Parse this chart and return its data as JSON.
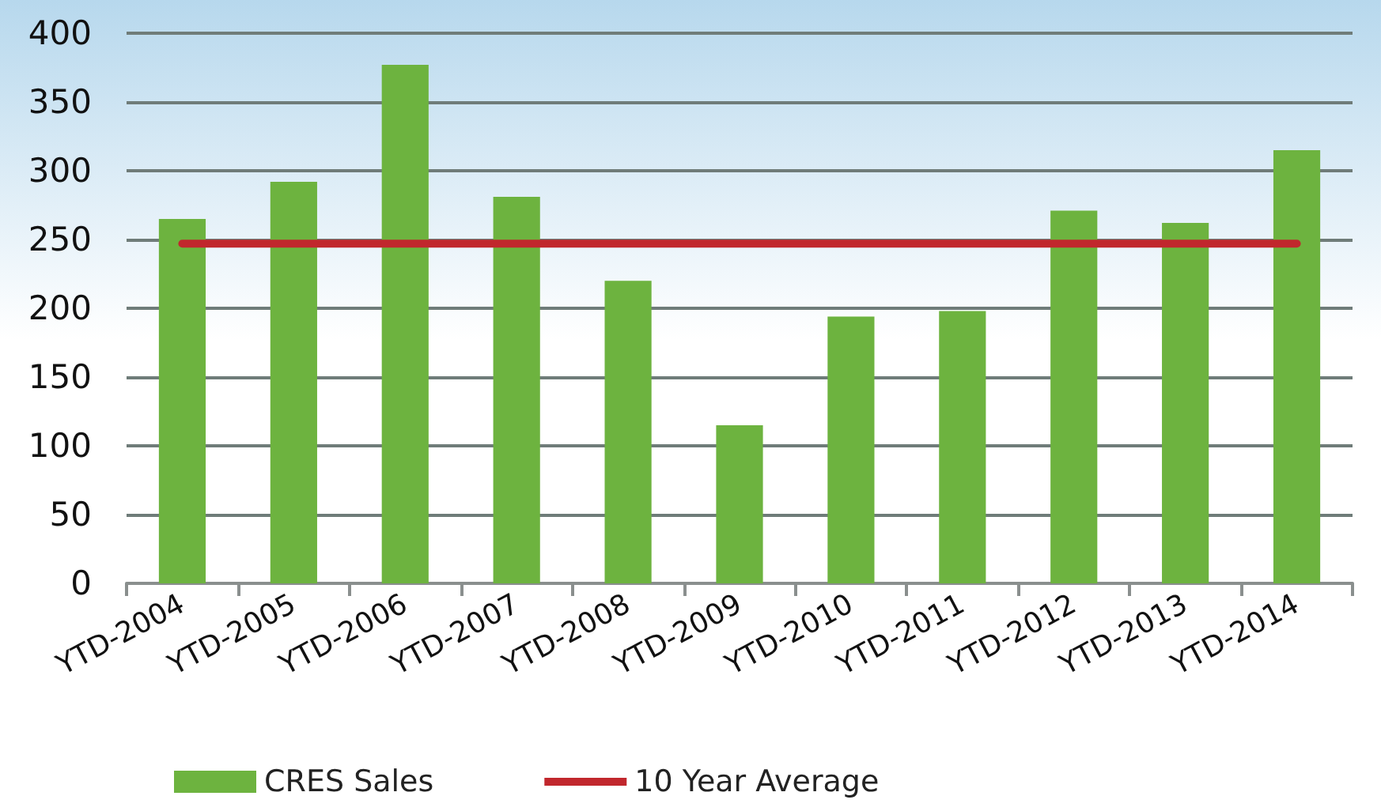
{
  "chart_data": {
    "type": "bar",
    "categories": [
      "YTD-2004",
      "YTD-2005",
      "YTD-2006",
      "YTD-2007",
      "YTD-2008",
      "YTD-2009",
      "YTD-2010",
      "YTD-2011",
      "YTD-2012",
      "YTD-2013",
      "YTD-2014"
    ],
    "series": [
      {
        "name": "CRES Sales",
        "color": "#6db33f",
        "values": [
          265,
          292,
          377,
          281,
          220,
          115,
          194,
          198,
          271,
          262,
          315
        ]
      },
      {
        "name": "10 Year Average",
        "type": "line",
        "color": "#c1272d",
        "values": [
          247,
          247,
          247,
          247,
          247,
          247,
          247,
          247,
          247,
          247,
          247
        ]
      }
    ],
    "ylim": [
      0,
      400
    ],
    "yticks": [
      0,
      50,
      100,
      150,
      200,
      250,
      300,
      350,
      400
    ],
    "grid": "y",
    "legend": "bottom",
    "marker": "none",
    "line_style": "solid"
  }
}
